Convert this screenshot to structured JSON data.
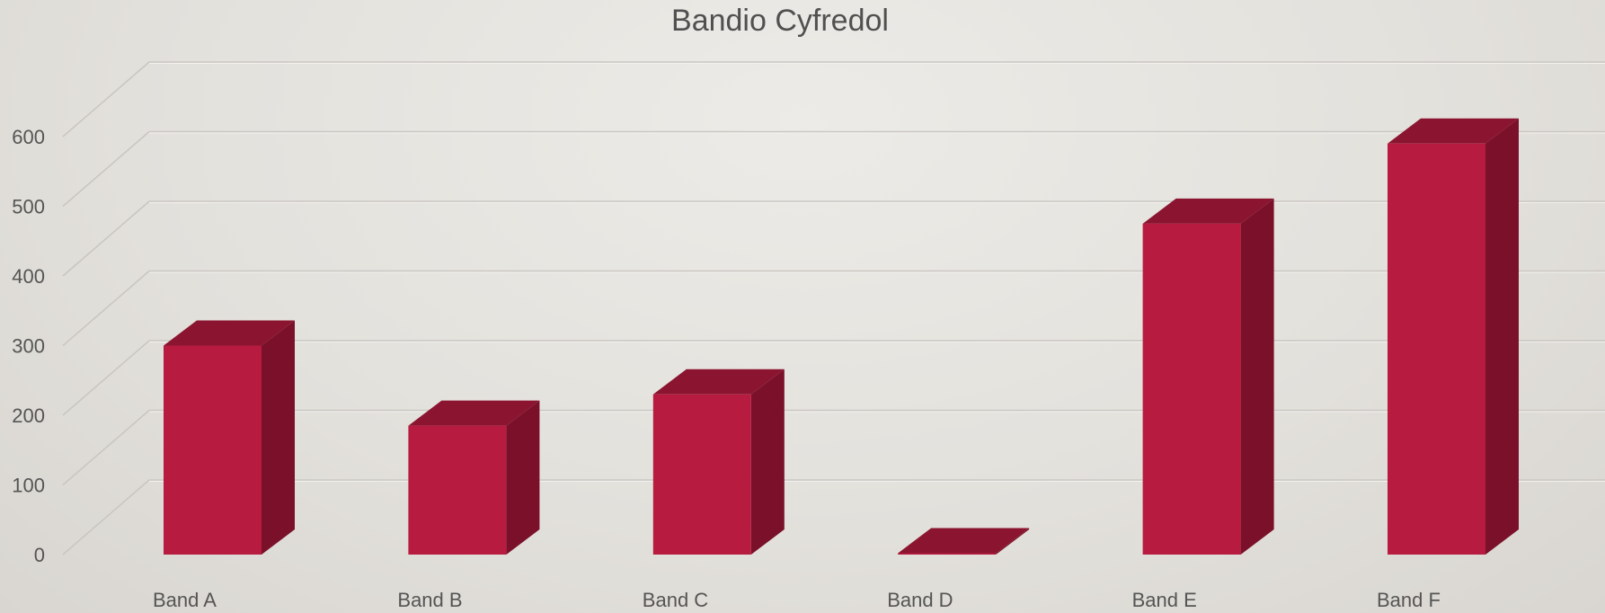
{
  "chart_data": {
    "type": "bar",
    "title": "Bandio Cyfredol",
    "categories": [
      "Band A",
      "Band B",
      "Band C",
      "Band D",
      "Band E",
      "Band F"
    ],
    "series": [
      {
        "values": [
          300,
          185,
          230,
          2,
          475,
          590
        ]
      }
    ],
    "ylim": [
      0,
      600
    ],
    "yticks": [
      0,
      100,
      200,
      300,
      400,
      500,
      600
    ],
    "grid": true,
    "legend": "none",
    "style": "3d-column",
    "colors": {
      "front": "#b71c40",
      "top": "#8b1530",
      "side": "#7a1029"
    }
  }
}
